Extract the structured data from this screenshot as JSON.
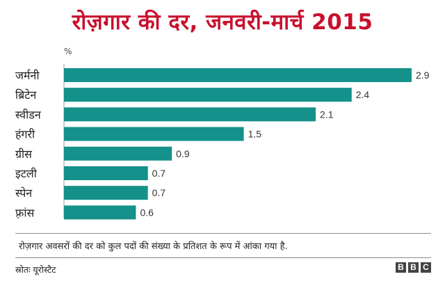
{
  "chart_data": {
    "type": "bar",
    "orientation": "horizontal",
    "title": "रोज़गार की दर, जनवरी-मार्च 2015",
    "unit": "%",
    "categories": [
      "जर्मनी",
      "ब्रिटेन",
      "स्वीडन",
      "हंगरी",
      "ग्रीस",
      "इटली",
      "स्पेन",
      "फ़्रांस"
    ],
    "values": [
      2.9,
      2.4,
      2.1,
      1.5,
      0.9,
      0.7,
      0.7,
      0.6
    ],
    "value_labels": [
      "2.9",
      "2.4",
      "2.1",
      "1.5",
      "0.9",
      "0.7",
      "0.7",
      "0.6"
    ],
    "bar_color": "#13918a",
    "grid": false,
    "legend": "none"
  },
  "note": "रोज़गार अवसरों की दर को कुल पदों की संख्या के प्रतिशत के रूप में आंका गया है.",
  "source": "स्रोतः यूरोस्टैट",
  "logo": [
    "B",
    "B",
    "C"
  ],
  "colors": {
    "title": "#c8102e",
    "bar": "#13918a"
  }
}
